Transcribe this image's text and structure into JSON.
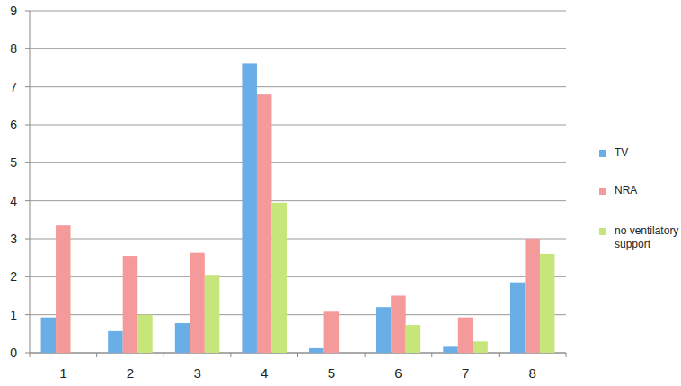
{
  "chart_data": {
    "type": "bar",
    "categories": [
      "1",
      "2",
      "3",
      "4",
      "5",
      "6",
      "7",
      "8"
    ],
    "series": [
      {
        "name": "TV",
        "color": "#6aaee8",
        "values": [
          0.93,
          0.57,
          0.78,
          7.62,
          0.12,
          1.2,
          0.18,
          1.85
        ]
      },
      {
        "name": "NRA",
        "color": "#f49a9a",
        "values": [
          3.35,
          2.55,
          2.63,
          6.8,
          1.08,
          1.5,
          0.93,
          3.0
        ]
      },
      {
        "name": "no ventilatory support",
        "color": "#c6e57a",
        "values": [
          0,
          1.0,
          2.05,
          3.95,
          0,
          0.73,
          0.3,
          2.6
        ]
      }
    ],
    "ylim": [
      0,
      9
    ],
    "yticks": [
      0,
      1,
      2,
      3,
      4,
      5,
      6,
      7,
      8,
      9
    ],
    "grid": true,
    "legend": "right"
  }
}
